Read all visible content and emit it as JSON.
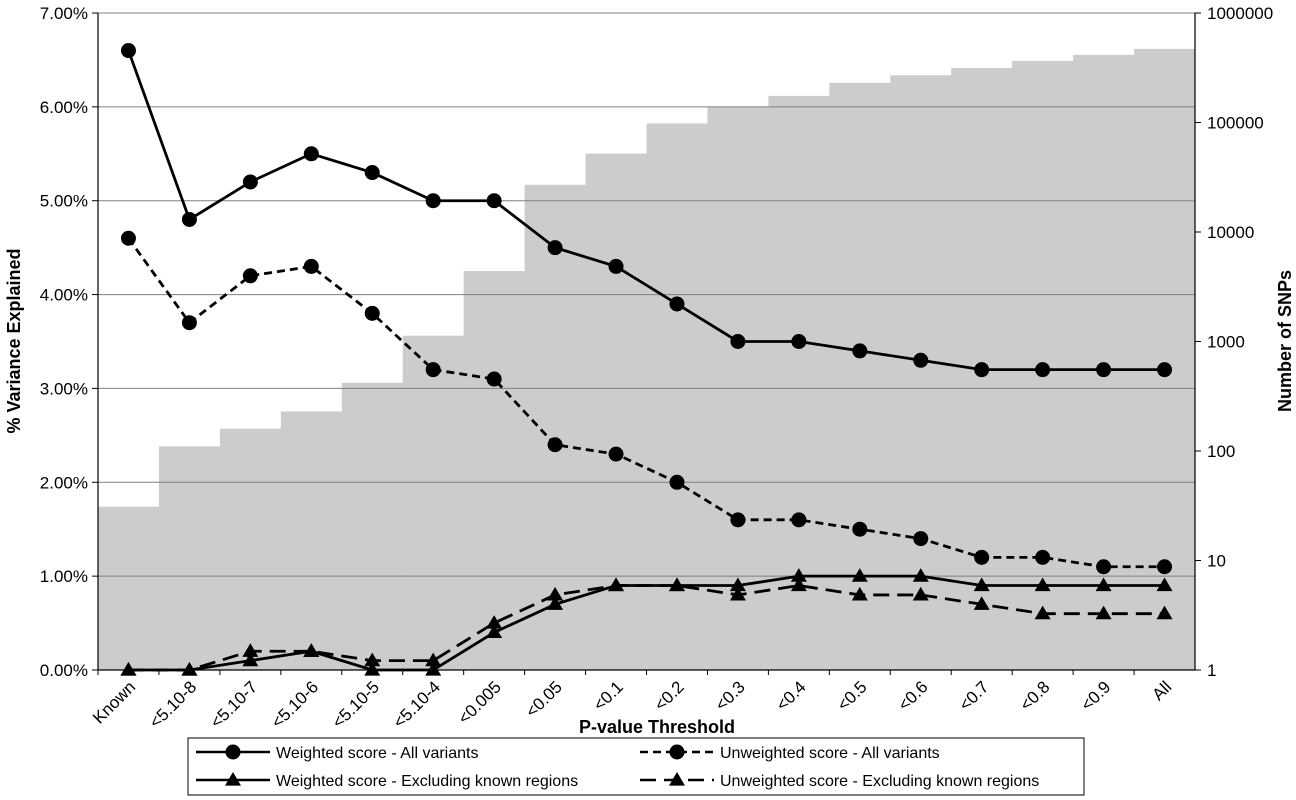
{
  "chart_data": {
    "type": "line",
    "xlabel": "P-value Threshold",
    "ylabel": "% Variance Explained",
    "y2label": "Number of SNPs",
    "categories": [
      "Known",
      "<5.10-8",
      "<5.10-7",
      "<5.10-6",
      "<5.10-5",
      "<5.10-4",
      "<0.005",
      "<0.05",
      "<0.1",
      "<0.2",
      "<0.3",
      "<0.4",
      "<0.5",
      "<0.6",
      "<0.7",
      "<0.8",
      "<0.9",
      "All"
    ],
    "ylim": [
      0,
      7
    ],
    "y_ticks": [
      "0.00%",
      "1.00%",
      "2.00%",
      "3.00%",
      "4.00%",
      "5.00%",
      "6.00%",
      "7.00%"
    ],
    "y2_scale": "log",
    "y2lim": [
      1,
      1000000
    ],
    "y2_ticks": [
      "1",
      "10",
      "100",
      "1000",
      "10000",
      "100000",
      "1000000"
    ],
    "grid": "horizontal major gridlines (left axis)",
    "legend_position": "bottom",
    "snp_counts": {
      "name": "Number of SNPs",
      "type": "area",
      "color": "#cccccc",
      "values": [
        31,
        110,
        160,
        230,
        420,
        1130,
        4400,
        27000,
        52000,
        98000,
        140000,
        175000,
        230000,
        270000,
        315000,
        365000,
        415000,
        470000
      ]
    },
    "series": [
      {
        "name": "Weighted score - All variants",
        "marker": "circle",
        "dash": "solid",
        "values": [
          6.6,
          4.8,
          5.2,
          5.5,
          5.3,
          5.0,
          5.0,
          4.5,
          4.3,
          3.9,
          3.5,
          3.5,
          3.4,
          3.3,
          3.2,
          3.2,
          3.2,
          3.2
        ]
      },
      {
        "name": "Unweighted score - All variants",
        "marker": "circle",
        "dash": "short-dash",
        "values": [
          4.6,
          3.7,
          4.2,
          4.3,
          3.8,
          3.2,
          3.1,
          2.4,
          2.3,
          2.0,
          1.6,
          1.6,
          1.5,
          1.4,
          1.2,
          1.2,
          1.1,
          1.1
        ]
      },
      {
        "name": "Weighted score - Excluding known regions",
        "marker": "triangle",
        "dash": "solid",
        "values": [
          0.0,
          0.0,
          0.1,
          0.2,
          0.0,
          0.0,
          0.4,
          0.7,
          0.9,
          0.9,
          0.9,
          1.0,
          1.0,
          1.0,
          0.9,
          0.9,
          0.9,
          0.9
        ]
      },
      {
        "name": "Unweighted score - Excluding known regions",
        "marker": "triangle",
        "dash": "long-dash",
        "values": [
          0.0,
          0.0,
          0.2,
          0.2,
          0.1,
          0.1,
          0.5,
          0.8,
          0.9,
          0.9,
          0.8,
          0.9,
          0.8,
          0.8,
          0.7,
          0.6,
          0.6,
          0.6
        ]
      }
    ],
    "colors": {
      "area": "#cccccc",
      "line": "#000000",
      "grid": "#808080"
    }
  }
}
